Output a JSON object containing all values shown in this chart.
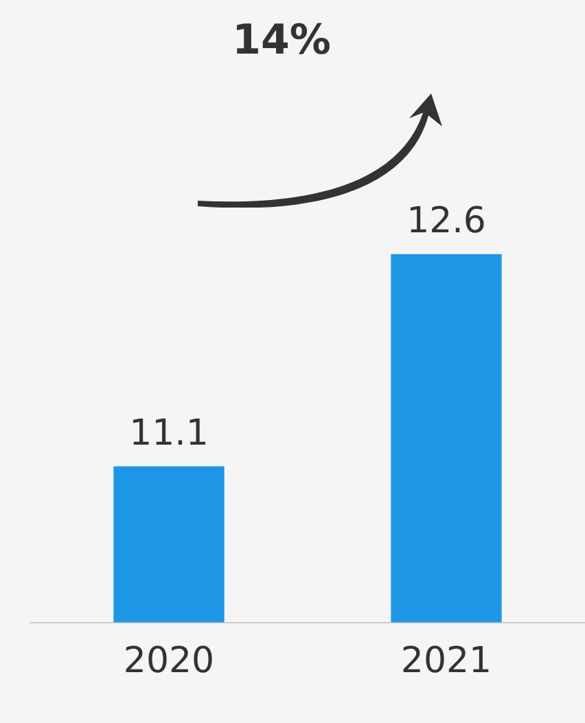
{
  "chart_data": {
    "type": "bar",
    "categories": [
      "2020",
      "2021"
    ],
    "values": [
      11.1,
      12.6
    ],
    "color": "#1e96e6",
    "ylim": [
      10,
      14.4
    ],
    "data_labels": true,
    "grid": false,
    "legend": false,
    "annotations": [
      "14%"
    ]
  }
}
